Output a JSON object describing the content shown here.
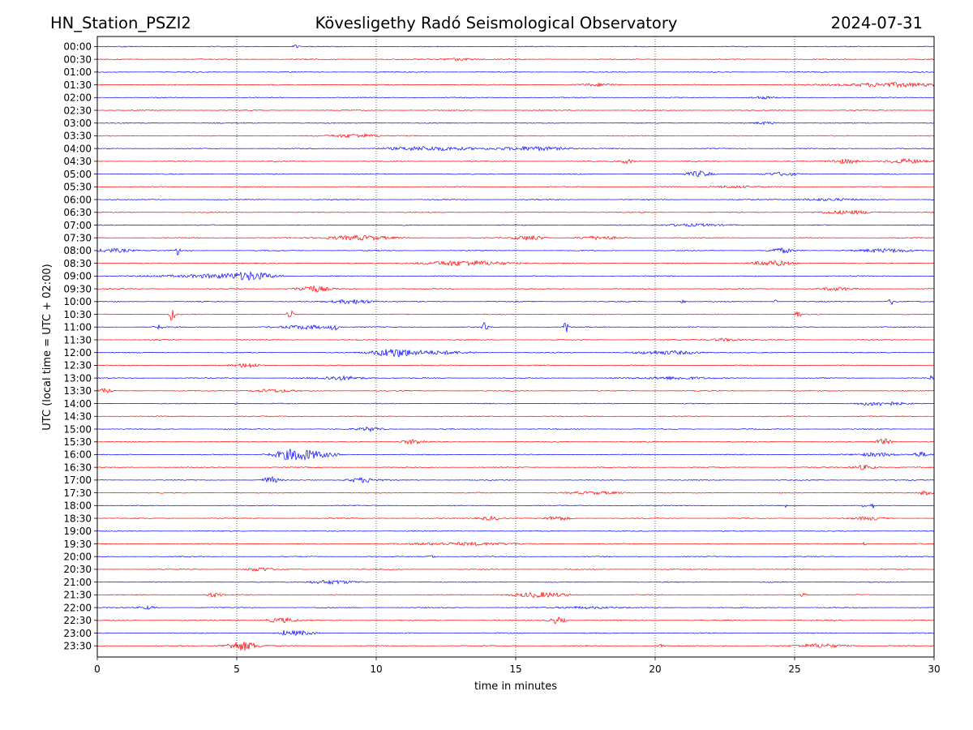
{
  "chart_data": {
    "type": "helicorder",
    "title_left": "HN_Station_PSZI2",
    "title_center": "Kövesligethy Radó Seismological Observatory",
    "title_right": "2024-07-31",
    "xlabel": "time in minutes",
    "ylabel": "UTC (local time = UTC + 02:00)",
    "xlim": [
      0,
      30
    ],
    "xticks": [
      0,
      5,
      10,
      15,
      20,
      25,
      30
    ],
    "xtick_labels": [
      "0",
      "5",
      "10",
      "15",
      "20",
      "25",
      "30"
    ],
    "grid_x": true,
    "series_colors": [
      "#0000ff",
      "#ff0000"
    ],
    "rows": [
      {
        "label": "00:00",
        "events": [
          [
            7.1,
            0.08,
            2
          ]
        ]
      },
      {
        "label": "00:30",
        "events": [
          [
            13,
            0.5,
            1.5
          ]
        ]
      },
      {
        "label": "01:00",
        "events": []
      },
      {
        "label": "01:30",
        "events": [
          [
            28.5,
            1.5,
            2.5
          ],
          [
            18,
            0.5,
            1.5
          ]
        ]
      },
      {
        "label": "02:00",
        "events": [
          [
            23.8,
            0.3,
            1.5
          ]
        ]
      },
      {
        "label": "02:30",
        "events": []
      },
      {
        "label": "03:00",
        "events": [
          [
            24,
            0.3,
            1.5
          ]
        ]
      },
      {
        "label": "03:30",
        "events": [
          [
            9.3,
            0.6,
            2.5
          ]
        ]
      },
      {
        "label": "04:00",
        "events": [
          [
            12.1,
            1.2,
            2.5
          ],
          [
            15.8,
            0.8,
            2.5
          ]
        ]
      },
      {
        "label": "04:30",
        "events": [
          [
            19,
            0.2,
            2.5
          ],
          [
            26.8,
            0.4,
            3
          ],
          [
            29,
            0.5,
            2.5
          ]
        ]
      },
      {
        "label": "05:00",
        "events": [
          [
            21.6,
            0.3,
            3.5
          ],
          [
            24.5,
            0.4,
            2
          ]
        ]
      },
      {
        "label": "05:30",
        "events": [
          [
            22.7,
            0.6,
            1.5
          ]
        ]
      },
      {
        "label": "06:00",
        "events": [
          [
            26,
            0.8,
            1.5
          ]
        ]
      },
      {
        "label": "06:30",
        "events": [
          [
            27,
            0.8,
            2
          ]
        ]
      },
      {
        "label": "07:00",
        "events": [
          [
            21.2,
            0.8,
            1.5
          ]
        ]
      },
      {
        "label": "07:30",
        "events": [
          [
            9.3,
            0.8,
            3
          ],
          [
            15.5,
            0.4,
            3
          ],
          [
            18,
            0.5,
            2
          ]
        ]
      },
      {
        "label": "08:00",
        "events": [
          [
            0.6,
            0.5,
            2.5
          ],
          [
            2.9,
            0.05,
            5.5
          ],
          [
            24.5,
            0.3,
            3
          ],
          [
            28.2,
            0.8,
            2
          ]
        ]
      },
      {
        "label": "08:30",
        "events": [
          [
            13.2,
            1.2,
            3
          ],
          [
            24.2,
            0.5,
            3
          ]
        ]
      },
      {
        "label": "09:00",
        "events": [
          [
            4.3,
            1.3,
            2.5
          ],
          [
            5.6,
            0.5,
            3.5
          ]
        ]
      },
      {
        "label": "09:30",
        "events": [
          [
            7.7,
            0.4,
            4
          ],
          [
            26.5,
            0.4,
            2
          ]
        ]
      },
      {
        "label": "10:00",
        "events": [
          [
            9.2,
            0.5,
            3
          ],
          [
            21,
            0.05,
            3.5
          ],
          [
            24.3,
            0.05,
            3
          ],
          [
            28.5,
            0.1,
            4
          ]
        ]
      },
      {
        "label": "10:30",
        "events": [
          [
            2.7,
            0.06,
            11
          ],
          [
            6.9,
            0.06,
            9
          ],
          [
            25.1,
            0.06,
            8
          ]
        ]
      },
      {
        "label": "11:00",
        "events": [
          [
            2.2,
            0.1,
            3
          ],
          [
            7.5,
            0.6,
            2.5
          ],
          [
            8.5,
            0.1,
            4
          ],
          [
            13.9,
            0.06,
            8
          ],
          [
            16.8,
            0.06,
            7
          ]
        ]
      },
      {
        "label": "11:30",
        "events": [
          [
            22.5,
            0.4,
            2
          ]
        ]
      },
      {
        "label": "12:00",
        "events": [
          [
            10.6,
            0.5,
            5
          ],
          [
            12,
            1,
            2
          ],
          [
            20.5,
            1,
            2
          ]
        ]
      },
      {
        "label": "12:30",
        "events": [
          [
            5.4,
            0.3,
            3
          ]
        ]
      },
      {
        "label": "13:00",
        "events": [
          [
            8.8,
            0.6,
            2.5
          ],
          [
            20.7,
            0.8,
            2
          ],
          [
            29.9,
            0.05,
            3
          ]
        ]
      },
      {
        "label": "13:30",
        "events": [
          [
            0.3,
            0.15,
            3
          ],
          [
            6.2,
            0.5,
            2
          ]
        ]
      },
      {
        "label": "14:00",
        "events": [
          [
            28,
            0.6,
            2.5
          ],
          [
            4.97,
            0.03,
            3
          ]
        ]
      },
      {
        "label": "14:30",
        "events": []
      },
      {
        "label": "15:00",
        "events": [
          [
            9.8,
            0.3,
            2.5
          ]
        ]
      },
      {
        "label": "15:30",
        "events": [
          [
            11.3,
            0.3,
            3
          ],
          [
            28.2,
            0.2,
            4
          ]
        ]
      },
      {
        "label": "16:00",
        "events": [
          [
            7,
            0.5,
            6
          ],
          [
            7.8,
            0.6,
            3
          ],
          [
            28,
            0.5,
            2.5
          ],
          [
            29.5,
            0.2,
            3
          ]
        ]
      },
      {
        "label": "16:30",
        "events": [
          [
            27.5,
            0.3,
            3
          ]
        ]
      },
      {
        "label": "17:00",
        "events": [
          [
            6.2,
            0.2,
            4
          ],
          [
            9.5,
            0.4,
            3
          ]
        ]
      },
      {
        "label": "17:30",
        "events": [
          [
            18,
            0.8,
            1.5
          ],
          [
            29.7,
            0.2,
            2.5
          ]
        ]
      },
      {
        "label": "18:00",
        "events": [
          [
            24.7,
            0.03,
            4
          ],
          [
            27.5,
            0.05,
            3
          ],
          [
            27.8,
            0.05,
            3
          ]
        ]
      },
      {
        "label": "18:30",
        "events": [
          [
            14.1,
            0.3,
            2.5
          ],
          [
            16.5,
            0.3,
            2.5
          ],
          [
            27.7,
            0.4,
            2
          ]
        ]
      },
      {
        "label": "19:00",
        "events": []
      },
      {
        "label": "19:30",
        "events": [
          [
            13.2,
            1.2,
            2
          ],
          [
            27.5,
            0.05,
            2
          ]
        ]
      },
      {
        "label": "20:00",
        "events": [
          [
            12,
            0.1,
            2
          ]
        ]
      },
      {
        "label": "20:30",
        "events": [
          [
            5.8,
            0.3,
            2.5
          ]
        ]
      },
      {
        "label": "21:00",
        "events": [
          [
            8.3,
            0.6,
            2.5
          ]
        ]
      },
      {
        "label": "21:30",
        "events": [
          [
            4.2,
            0.2,
            3
          ],
          [
            15.8,
            0.7,
            3
          ],
          [
            25.3,
            0.1,
            2
          ]
        ]
      },
      {
        "label": "22:00",
        "events": [
          [
            1.8,
            0.2,
            2
          ],
          [
            17.5,
            0.8,
            1.5
          ]
        ]
      },
      {
        "label": "22:30",
        "events": [
          [
            6.6,
            0.4,
            3
          ],
          [
            16.5,
            0.2,
            4
          ]
        ]
      },
      {
        "label": "23:00",
        "events": [
          [
            7.2,
            0.4,
            2.5
          ],
          [
            6.7,
            0.05,
            2.5
          ]
        ]
      },
      {
        "label": "23:30",
        "events": [
          [
            5.2,
            0.4,
            6
          ],
          [
            26,
            0.6,
            2.5
          ],
          [
            20.2,
            0.1,
            2
          ]
        ]
      }
    ]
  }
}
